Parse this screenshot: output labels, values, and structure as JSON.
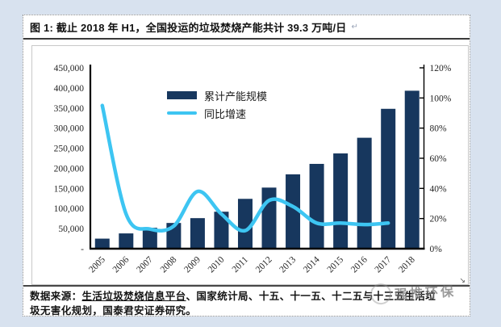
{
  "panel": {
    "title": "图 1:  截止 2018 年 H1，全国投运的垃圾焚烧产能共计 39.3 万吨/日",
    "title_mark": "↵",
    "source": {
      "prefix": "数据来源：",
      "link": "生活垃圾焚烧信息平台",
      "rest": "、国家统计局、十五、十一五、十二五与十三五生活垃",
      "line2": "圾无害化规划，国泰君安证券研究。"
    },
    "watermark": {
      "text": "强推环保"
    }
  },
  "chart_data": {
    "type": "bar+line combo",
    "title": "截止 2018 年 H1，全国投运的垃圾焚烧产能共计 39.3 万吨/日",
    "categories": [
      "2005",
      "2006",
      "2007",
      "2008",
      "2009",
      "2010",
      "2011",
      "2012",
      "2013",
      "2014",
      "2015",
      "2016",
      "2017",
      "2018"
    ],
    "series": [
      {
        "name": "累计产能规模",
        "type": "bar",
        "axis": "left",
        "unit": "吨/日",
        "color": "#17375E",
        "values": [
          25000,
          38000,
          52000,
          64000,
          76000,
          92000,
          124000,
          152000,
          185000,
          211000,
          237000,
          276000,
          348000,
          393000
        ]
      },
      {
        "name": "同比增速",
        "type": "line",
        "axis": "right",
        "unit": "%",
        "color": "#3DC5F2",
        "values": [
          95,
          23,
          13,
          15,
          38,
          23,
          12,
          32,
          28,
          17,
          17,
          16,
          17,
          null
        ]
      }
    ],
    "left_axis": {
      "min": 0,
      "max": 450000,
      "ticks": [
        "450,000",
        "400,000",
        "350,000",
        "300,000",
        "250,000",
        "200,000",
        "150,000",
        "100,000",
        "50,000",
        "-"
      ]
    },
    "right_axis": {
      "min": 0,
      "max": 120,
      "ticks": [
        "120%",
        "100%",
        "80%",
        "60%",
        "40%",
        "20%",
        "0%"
      ]
    },
    "legend_position": "inside-top-left",
    "grid": "off"
  }
}
